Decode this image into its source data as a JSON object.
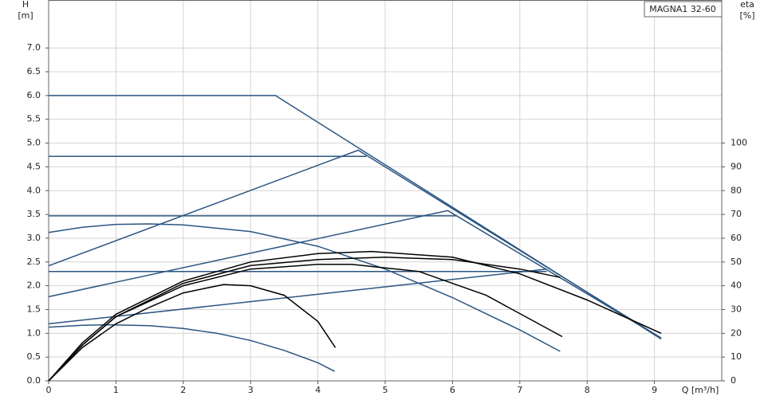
{
  "chart_data": {
    "type": "line",
    "legend_box": "MAGNA1 32-60",
    "ylabel_top": "H",
    "ylabel_unit": "[m]",
    "y2label_top": "eta",
    "y2label_unit": "[%]",
    "xlabel": "Q [m³/h]",
    "xlim": [
      0,
      10
    ],
    "xticks": [
      0,
      1,
      2,
      3,
      4,
      5,
      6,
      7,
      8,
      9
    ],
    "ylim": [
      0,
      8
    ],
    "yticks": [
      {
        "value": 0,
        "label": "0.0"
      },
      {
        "value": 0.5,
        "label": "0.5"
      },
      {
        "value": 1,
        "label": "1.0"
      },
      {
        "value": 1.5,
        "label": "1.5"
      },
      {
        "value": 2,
        "label": "2.0"
      },
      {
        "value": 2.5,
        "label": "2.5"
      },
      {
        "value": 3,
        "label": "3.0"
      },
      {
        "value": 3.5,
        "label": "3.5"
      },
      {
        "value": 4,
        "label": "4.0"
      },
      {
        "value": 4.5,
        "label": "4.5"
      },
      {
        "value": 5,
        "label": "5.0"
      },
      {
        "value": 5.5,
        "label": "5.5"
      },
      {
        "value": 6,
        "label": "6.0"
      },
      {
        "value": 6.5,
        "label": "6.5"
      },
      {
        "value": 7,
        "label": "7.0"
      }
    ],
    "y2lim": [
      0,
      160
    ],
    "y2ticks": [
      0,
      10,
      20,
      30,
      40,
      50,
      60,
      70,
      80,
      90,
      100
    ],
    "grid": true,
    "series": [
      {
        "color": "#2b5581",
        "x": [
          0,
          3.37,
          9.1
        ],
        "values": [
          6.0,
          6.0,
          0.88
        ]
      },
      {
        "color": "#2b5581",
        "x": [
          0,
          4.72
        ],
        "values": [
          4.72,
          4.72
        ]
      },
      {
        "color": "#2b5581",
        "x": [
          0,
          4.6,
          9.1
        ],
        "values": [
          2.42,
          4.85,
          0.9
        ]
      },
      {
        "color": "#2b5581",
        "x": [
          0,
          6.05
        ],
        "values": [
          3.47,
          3.47
        ]
      },
      {
        "color": "#2b5581",
        "x": [
          0,
          5.93,
          9.1
        ],
        "values": [
          1.77,
          3.58,
          0.9
        ]
      },
      {
        "color": "#2b5581",
        "x": [
          0,
          7.4
        ],
        "values": [
          2.3,
          2.3
        ]
      },
      {
        "color": "#2b5581",
        "x": [
          0,
          7.4
        ],
        "values": [
          1.2,
          2.35
        ]
      },
      {
        "color": "#2b5581",
        "x": [
          0,
          0.5,
          1,
          1.5,
          2,
          3,
          4,
          5,
          6,
          7,
          7.6
        ],
        "values": [
          3.12,
          3.23,
          3.29,
          3.3,
          3.28,
          3.14,
          2.83,
          2.35,
          1.75,
          1.07,
          0.62
        ]
      },
      {
        "color": "#2b5581",
        "x": [
          0,
          0.5,
          0.9,
          1.5,
          2,
          2.5,
          3,
          3.5,
          4,
          4.25
        ],
        "values": [
          1.13,
          1.17,
          1.18,
          1.16,
          1.1,
          1.0,
          0.85,
          0.64,
          0.38,
          0.2
        ]
      },
      {
        "color": "#000000",
        "axis": "y2",
        "x": [
          0,
          0.5,
          1,
          1.5,
          2,
          2.6,
          3,
          3.5,
          4,
          4.26
        ],
        "values": [
          0,
          14,
          24,
          31,
          37,
          40.5,
          40,
          36,
          25,
          14
        ]
      },
      {
        "color": "#000000",
        "axis": "y2",
        "x": [
          0,
          0.5,
          1,
          2,
          3,
          4,
          4.5,
          5.5,
          6.5,
          7.63
        ],
        "values": [
          0,
          15,
          27,
          40,
          47,
          49,
          49,
          46,
          36,
          18.6
        ]
      },
      {
        "color": "#000000",
        "axis": "y2",
        "x": [
          0,
          0.5,
          1,
          2,
          3,
          4,
          5,
          6,
          7,
          7.6
        ],
        "values": [
          0,
          15,
          27,
          41,
          48.5,
          51,
          52,
          51,
          47,
          43.5
        ]
      },
      {
        "color": "#000000",
        "axis": "y2",
        "x": [
          0,
          0.5,
          1,
          2,
          3,
          4,
          4.8,
          6,
          7,
          8,
          9.1
        ],
        "values": [
          0,
          16,
          28,
          42,
          50,
          53.5,
          54.4,
          52,
          45,
          34,
          20
        ]
      }
    ]
  }
}
